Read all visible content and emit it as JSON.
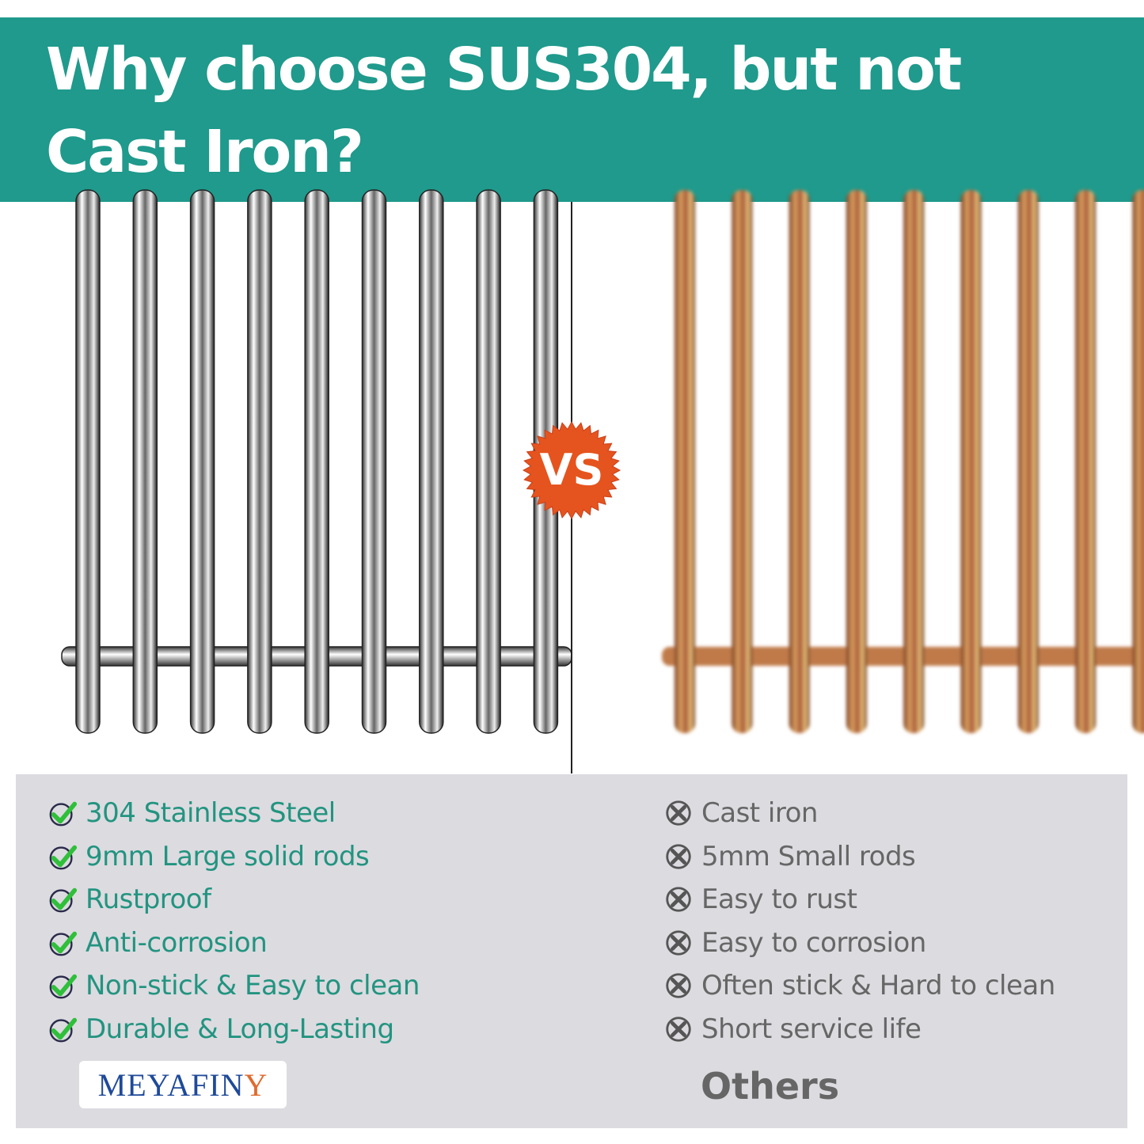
{
  "header": {
    "title": "Why choose SUS304, but not Cast Iron?"
  },
  "vs_badge": {
    "label": "VS"
  },
  "pros": {
    "icon": "check-circle-icon",
    "items": [
      "304 Stainless Steel",
      "9mm Large solid rods",
      "Rustproof",
      "Anti-corrosion",
      "Non-stick & Easy to clean",
      "Durable & Long-Lasting"
    ]
  },
  "cons": {
    "icon": "x-circle-icon",
    "items": [
      "Cast iron",
      "5mm Small rods",
      "Easy to rust",
      "Easy to corrosion",
      "Often stick & Hard to clean",
      "Short service life"
    ]
  },
  "brand": {
    "logo_main": "MEYAFIN",
    "logo_last": "Y"
  },
  "competitor_label": "Others",
  "colors": {
    "header": "#1f9a8c",
    "pros_text": "#229480",
    "cons_text": "#666666",
    "panel": "#dcdbe0",
    "vs_badge": "#e5541e",
    "check": "#2fbf3a"
  }
}
